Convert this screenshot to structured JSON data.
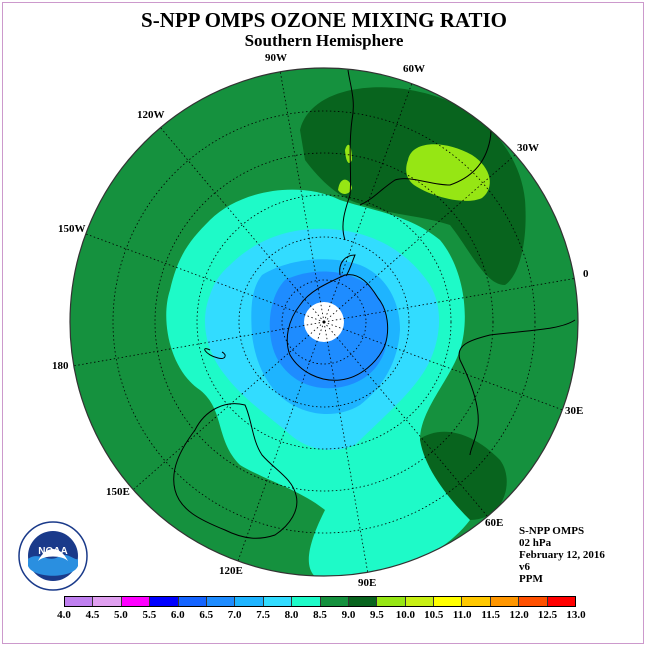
{
  "title": "S-NPP OMPS OZONE MIXING RATIO",
  "subtitle": "Southern Hemisphere",
  "longitude_labels": [
    "90W",
    "60W",
    "30W",
    "0",
    "30E",
    "60E",
    "90E",
    "120E",
    "150E",
    "180",
    "150W",
    "120W"
  ],
  "info": {
    "instrument": "S-NPP OMPS",
    "pressure": "02 hPa",
    "date": "February 12, 2016",
    "version": "v6",
    "unit": "PPM"
  },
  "logo_text": "NOAA",
  "legend": {
    "ticks": [
      "4.0",
      "4.5",
      "5.0",
      "5.5",
      "6.0",
      "6.5",
      "7.0",
      "7.5",
      "8.0",
      "8.5",
      "9.0",
      "9.5",
      "10.0",
      "10.5",
      "11.0",
      "11.5",
      "12.0",
      "12.5",
      "13.0"
    ],
    "colors": [
      "#c080f0",
      "#e0a0f0",
      "#ff00ff",
      "#0000ff",
      "#1464ff",
      "#1e8cff",
      "#1eb4ff",
      "#32dcff",
      "#1efac8",
      "#15913e",
      "#08641e",
      "#96e614",
      "#c8f014",
      "#ffff00",
      "#ffc800",
      "#ff9600",
      "#ff5000",
      "#ff0000",
      "#96503c"
    ]
  },
  "colors": {
    "map_border": "#333333",
    "coast": "#000000",
    "grid": "#000000"
  }
}
